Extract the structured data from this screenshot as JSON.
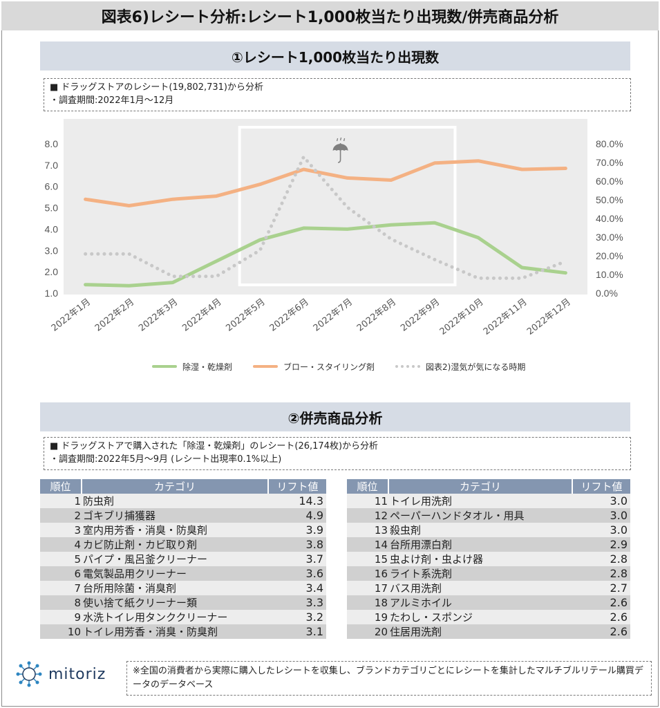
{
  "main_title": "図表6)レシート分析:レシート1,000枚当たり出現数/併売商品分析",
  "section1": {
    "title": "①レシート1,000枚当たり出現数",
    "note_line1": "■ ドラッグストアのレシート(19,802,731)から分析",
    "note_line2": "・調査期間:2022年1月〜12月"
  },
  "chart_data": {
    "type": "line",
    "categories": [
      "2022年1月",
      "2022年2月",
      "2022年3月",
      "2022年4月",
      "2022年5月",
      "2022年6月",
      "2022年7月",
      "2022年8月",
      "2022年9月",
      "2022年10月",
      "2022年11月",
      "2022年12月"
    ],
    "y_left_ticks": [
      "8.0",
      "7.0",
      "6.0",
      "5.0",
      "4.0",
      "3.0",
      "2.0",
      "1.0"
    ],
    "y_right_ticks": [
      "80.0%",
      "70.0%",
      "60.0%",
      "50.0%",
      "40.0%",
      "30.0%",
      "20.0%",
      "10.0%",
      "0.0%"
    ],
    "ylim_left": [
      1.0,
      8.0
    ],
    "ylim_right": [
      0.0,
      0.8
    ],
    "highlight": [
      "2022年5月",
      "2022年9月"
    ],
    "umbrella_icon": "umbrella-icon",
    "series": [
      {
        "name": "除湿・乾燥剤",
        "axis": "left",
        "style": "solid",
        "color": "#a9d18e",
        "values": [
          1.4,
          1.35,
          1.5,
          2.5,
          3.5,
          4.05,
          4.0,
          4.2,
          4.3,
          3.6,
          2.2,
          1.95
        ]
      },
      {
        "name": "ブロー・スタイリング剤",
        "axis": "left",
        "style": "solid",
        "color": "#f4b183",
        "values": [
          5.4,
          5.1,
          5.4,
          5.55,
          6.1,
          6.8,
          6.4,
          6.3,
          7.1,
          7.2,
          6.8,
          6.85
        ]
      },
      {
        "name": "図表2)湿気が気になる時期",
        "axis": "right",
        "style": "dotted",
        "color": "#c8c8c8",
        "values": [
          0.21,
          0.21,
          0.09,
          0.09,
          0.23,
          0.73,
          0.46,
          0.29,
          0.18,
          0.08,
          0.08,
          0.17
        ]
      }
    ]
  },
  "section2": {
    "title": "②併売商品分析",
    "note_line1": "■ ドラッグストアで購入された「除湿・乾燥剤」のレシート(26,174枚)から分析",
    "note_line2": "・調査期間:2022年5月〜9月 (レシート出現率0.1%以上)"
  },
  "table_headers": {
    "rank": "順位",
    "category": "カテゴリ",
    "lift": "リフト値"
  },
  "table_left": [
    {
      "rank": "1",
      "category": "防虫剤",
      "lift": "14.3"
    },
    {
      "rank": "2",
      "category": "ゴキブリ捕獲器",
      "lift": "4.9"
    },
    {
      "rank": "3",
      "category": "室内用芳香・消臭・防臭剤",
      "lift": "3.9"
    },
    {
      "rank": "4",
      "category": "カビ防止剤・カビ取り剤",
      "lift": "3.8"
    },
    {
      "rank": "5",
      "category": "パイプ・風呂釜クリーナー",
      "lift": "3.7"
    },
    {
      "rank": "6",
      "category": "電気製品用クリーナー",
      "lift": "3.6"
    },
    {
      "rank": "7",
      "category": "台所用除菌・消臭剤",
      "lift": "3.4"
    },
    {
      "rank": "8",
      "category": "使い捨て紙クリーナー類",
      "lift": "3.3"
    },
    {
      "rank": "9",
      "category": "水洗トイレ用タンククリーナー",
      "lift": "3.2"
    },
    {
      "rank": "10",
      "category": "トイレ用芳香・消臭・防臭剤",
      "lift": "3.1"
    }
  ],
  "table_right": [
    {
      "rank": "11",
      "category": "トイレ用洗剤",
      "lift": "3.0"
    },
    {
      "rank": "12",
      "category": "ペーパーハンドタオル・用具",
      "lift": "3.0"
    },
    {
      "rank": "13",
      "category": "殺虫剤",
      "lift": "3.0"
    },
    {
      "rank": "14",
      "category": "台所用漂白剤",
      "lift": "2.9"
    },
    {
      "rank": "15",
      "category": "虫よけ剤・虫よけ器",
      "lift": "2.8"
    },
    {
      "rank": "16",
      "category": "ライト系洗剤",
      "lift": "2.8"
    },
    {
      "rank": "17",
      "category": "バス用洗剤",
      "lift": "2.7"
    },
    {
      "rank": "18",
      "category": "アルミホイル",
      "lift": "2.6"
    },
    {
      "rank": "19",
      "category": "たわし・スポンジ",
      "lift": "2.6"
    },
    {
      "rank": "20",
      "category": "住居用洗剤",
      "lift": "2.6"
    }
  ],
  "footer": {
    "logo_text": "mitoriz",
    "note": "※全国の消費者から実際に購入したレシートを収集し、ブランドカテゴリごとにレシートを集計したマルチブルリテール購買データのデータベース"
  }
}
